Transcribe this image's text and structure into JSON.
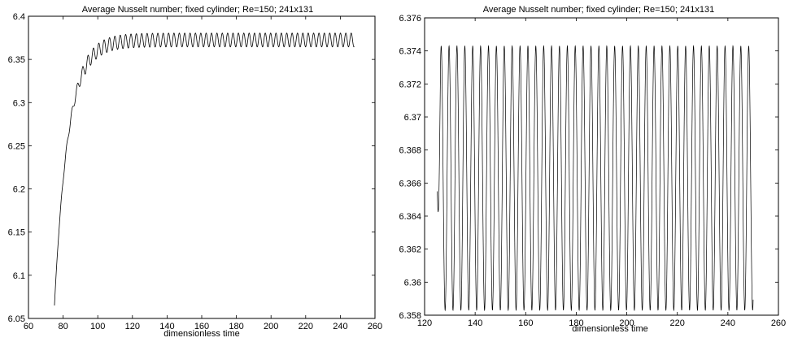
{
  "chart_data": [
    {
      "type": "line",
      "title": "Average Nusselt number; fixed cylinder; Re=150; 241x131",
      "xlabel": "dimensionless time",
      "ylabel": "",
      "xlim": [
        60,
        260
      ],
      "ylim": [
        6.05,
        6.4
      ],
      "xticks": [
        "60",
        "80",
        "100",
        "120",
        "140",
        "160",
        "180",
        "200",
        "220",
        "240",
        "260"
      ],
      "yticks": [
        "6.05",
        "6.1",
        "6.15",
        "6.2",
        "6.25",
        "6.3",
        "6.35",
        "6.4"
      ],
      "grid": false,
      "series": [
        {
          "color": "#000000",
          "x_start": 75,
          "x_end": 248,
          "y_start": 6.065,
          "y_steady": 6.3725,
          "oscillation_amplitude": 0.008,
          "oscillation_period": 3.1,
          "settle_time": 100
        }
      ]
    },
    {
      "type": "line",
      "title": "Average Nusselt number; fixed cylinder; Re=150; 241x131",
      "xlabel": "dimensionless time",
      "ylabel": "",
      "xlim": [
        120,
        260
      ],
      "ylim": [
        6.358,
        6.376
      ],
      "xticks": [
        "120",
        "140",
        "160",
        "180",
        "200",
        "220",
        "240",
        "260"
      ],
      "yticks": [
        "6.358",
        "6.36",
        "6.362",
        "6.364",
        "6.366",
        "6.368",
        "6.37",
        "6.372",
        "6.374",
        "6.376"
      ],
      "grid": false,
      "series": [
        {
          "color": "#000000",
          "x_start": 125,
          "x_end": 250,
          "y_max": 6.3743,
          "y_min": 6.3583,
          "oscillation_period": 3.12
        }
      ]
    }
  ]
}
